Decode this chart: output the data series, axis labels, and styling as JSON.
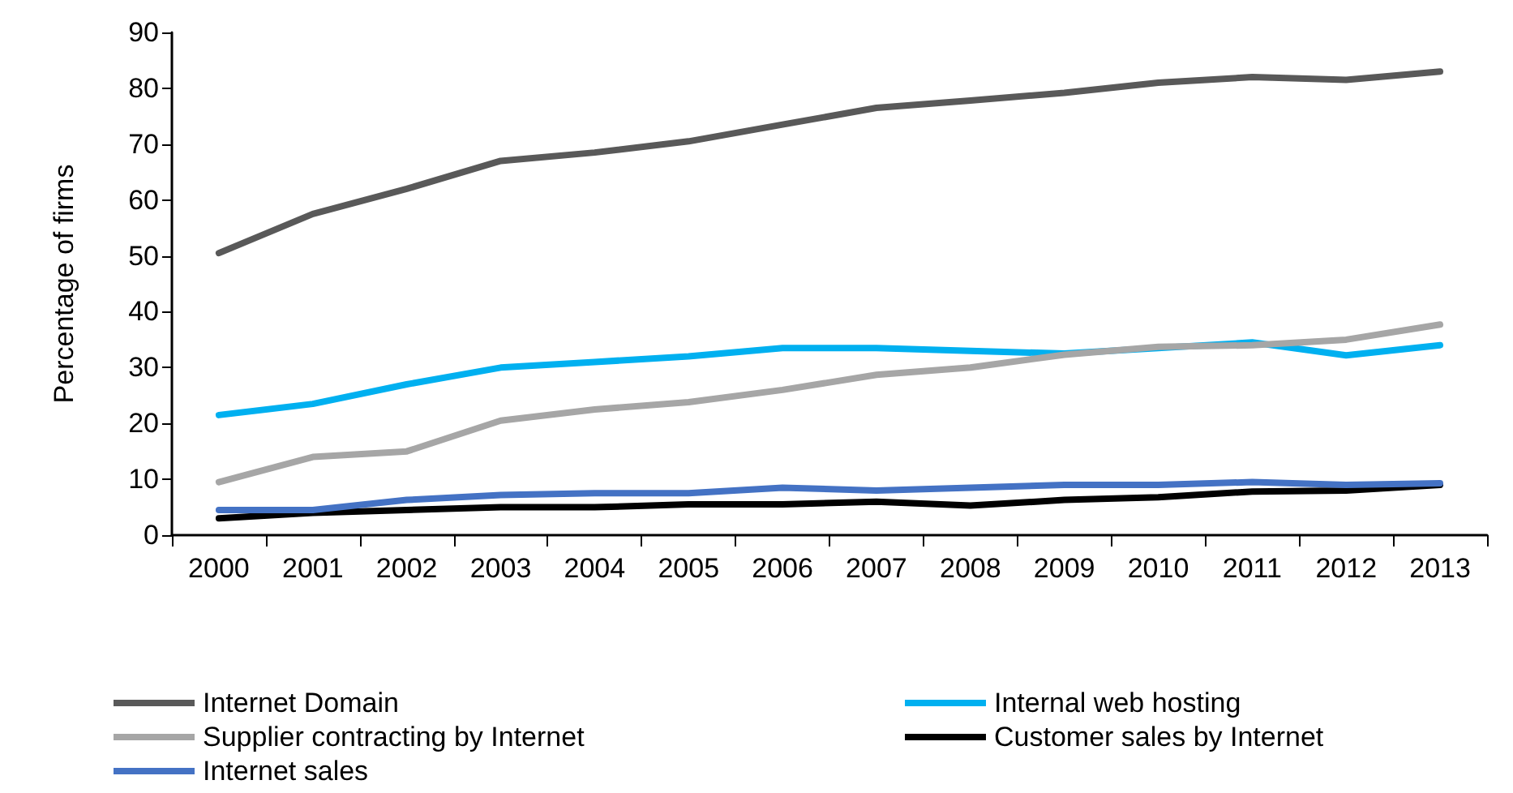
{
  "chart_data": {
    "type": "line",
    "ylabel": "Percentage of firms",
    "categories": [
      "2000",
      "2001",
      "2002",
      "2003",
      "2004",
      "2005",
      "2006",
      "2007",
      "2008",
      "2009",
      "2010",
      "2011",
      "2012",
      "2013"
    ],
    "series": [
      {
        "name": "Internet Domain",
        "color": "#595959",
        "values": [
          50.5,
          57.5,
          62,
          67,
          68.5,
          70.5,
          73.5,
          76.5,
          77.8,
          79.2,
          81,
          82,
          81.5,
          83
        ]
      },
      {
        "name": "Internal web hosting",
        "color": "#00b0f0",
        "values": [
          21.5,
          23.5,
          27,
          30,
          31,
          32,
          33.5,
          33.5,
          33,
          32.5,
          33.5,
          34.5,
          32.2,
          34
        ]
      },
      {
        "name": "Supplier contracting by Internet",
        "color": "#a6a6a6",
        "values": [
          9.5,
          14,
          15,
          20.5,
          22.5,
          23.8,
          26,
          28.7,
          30,
          32.3,
          33.7,
          34,
          35,
          37.7
        ]
      },
      {
        "name": "Customer sales by Internet",
        "color": "#000000",
        "values": [
          3,
          4,
          4.5,
          5,
          5,
          5.5,
          5.5,
          6,
          5.3,
          6.3,
          6.8,
          7.8,
          8,
          9
        ]
      },
      {
        "name": "Internet sales",
        "color": "#4472c4",
        "values": [
          4.5,
          4.5,
          6.3,
          7.2,
          7.5,
          7.5,
          8.5,
          8,
          8.5,
          9,
          9,
          9.5,
          9,
          9.3
        ]
      }
    ],
    "ylim": [
      0,
      90
    ],
    "yticks": [
      0,
      10,
      20,
      30,
      40,
      50,
      60,
      70,
      80,
      90
    ],
    "grid": false,
    "legend": "bottom",
    "marker": "none",
    "line_style": "solid"
  }
}
